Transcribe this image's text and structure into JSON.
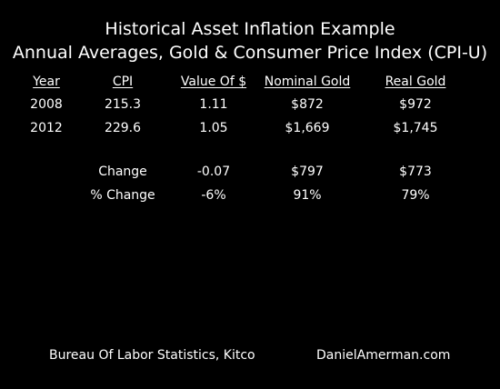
{
  "chart_data": {
    "type": "table",
    "title": "Historical Asset Inflation Example",
    "subtitle": "Annual Averages, Gold & Consumer Price Index (CPI-U)",
    "columns": [
      "Year",
      "CPI",
      "Value Of $",
      "Nominal Gold",
      "Real Gold"
    ],
    "rows": [
      [
        "2008",
        "215.3",
        "1.11",
        "$872",
        "$972"
      ],
      [
        "2012",
        "229.6",
        "1.05",
        "$1,669",
        "$1,745"
      ]
    ],
    "summary_rows": [
      [
        "",
        "Change",
        "-0.07",
        "$797",
        "$773"
      ],
      [
        "",
        "% Change",
        "-6%",
        "91%",
        "79%"
      ]
    ],
    "footer_left": "Bureau Of Labor Statistics, Kitco",
    "footer_right": "DanielAmerman.com"
  }
}
